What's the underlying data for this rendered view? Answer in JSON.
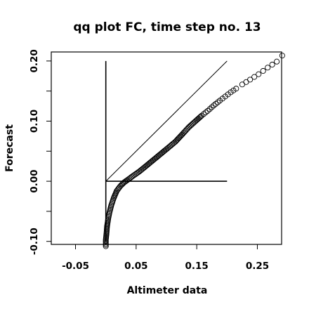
{
  "chart_data": {
    "type": "scatter",
    "title": "qq plot FC, time step no. 13",
    "xlabel": "Altimeter data",
    "ylabel": "Forecast",
    "xlim": [
      -0.09,
      0.29
    ],
    "ylim": [
      -0.105,
      0.215
    ],
    "x_ticks": [
      -0.05,
      0.05,
      0.15,
      0.25
    ],
    "x_tick_labels": [
      "-0.05",
      "0.05",
      "0.15",
      "0.25"
    ],
    "y_ticks": [
      -0.1,
      0.0,
      0.1,
      0.2
    ],
    "y_tick_labels": [
      "-0.10",
      "0.00",
      "0.10",
      "0.20"
    ],
    "y_minor_ticks": [
      -0.05,
      0.05,
      0.15
    ],
    "reference_lines": [
      {
        "kind": "diagonal",
        "x": [
          0.0,
          0.2
        ],
        "y": [
          0.0,
          0.2
        ]
      },
      {
        "kind": "horizontal",
        "x": [
          0.0,
          0.2
        ],
        "y": [
          0.0,
          0.0
        ]
      },
      {
        "kind": "vertical",
        "x": [
          0.0,
          0.0
        ],
        "y": [
          0.0,
          0.2
        ]
      },
      {
        "kind": "vertical-lower",
        "x": [
          0.0,
          0.0
        ],
        "y": [
          -0.1,
          0.0
        ]
      }
    ],
    "grid": false,
    "marker": "open-circle",
    "quantile_curve": [
      [
        0.0,
        -0.108
      ],
      [
        0.0,
        -0.097
      ],
      [
        0.001,
        -0.088
      ],
      [
        0.002,
        -0.075
      ],
      [
        0.004,
        -0.062
      ],
      [
        0.006,
        -0.052
      ],
      [
        0.009,
        -0.04
      ],
      [
        0.013,
        -0.028
      ],
      [
        0.018,
        -0.016
      ],
      [
        0.024,
        -0.008
      ],
      [
        0.03,
        -0.002
      ],
      [
        0.037,
        0.003
      ],
      [
        0.045,
        0.009
      ],
      [
        0.055,
        0.016
      ],
      [
        0.066,
        0.025
      ],
      [
        0.078,
        0.035
      ],
      [
        0.09,
        0.045
      ],
      [
        0.102,
        0.055
      ],
      [
        0.115,
        0.066
      ],
      [
        0.127,
        0.079
      ],
      [
        0.137,
        0.09
      ],
      [
        0.148,
        0.1
      ],
      [
        0.158,
        0.109
      ],
      [
        0.168,
        0.117
      ],
      [
        0.178,
        0.126
      ],
      [
        0.188,
        0.134
      ],
      [
        0.197,
        0.141
      ],
      [
        0.206,
        0.148
      ],
      [
        0.215,
        0.154
      ],
      [
        0.225,
        0.161
      ],
      [
        0.238,
        0.169
      ],
      [
        0.252,
        0.178
      ],
      [
        0.267,
        0.189
      ],
      [
        0.282,
        0.199
      ],
      [
        0.291,
        0.209
      ]
    ]
  }
}
